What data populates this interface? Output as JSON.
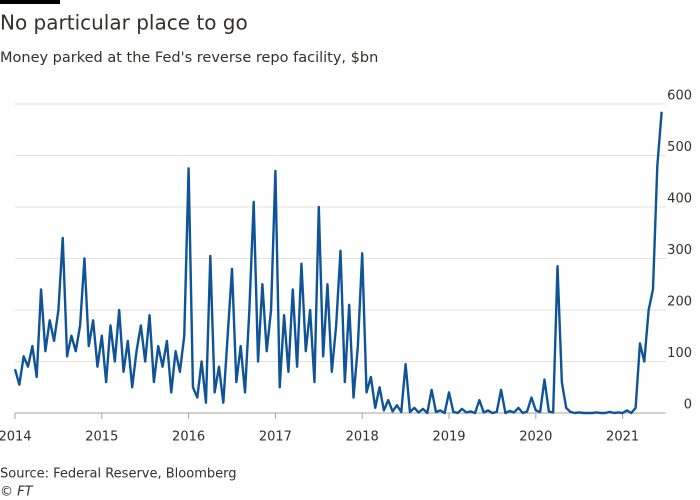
{
  "chart_data": {
    "type": "line",
    "title": "No particular place to go",
    "subtitle": "Money parked at the Fed's reverse repo facility, $bn",
    "source": "Source: Federal Reserve, Bloomberg",
    "credit": "© FT",
    "color": "#0f5499",
    "grid": true,
    "y_axis_side": "right",
    "xlim": [
      2014,
      2021.5
    ],
    "xticks": [
      2014,
      2015,
      2016,
      2017,
      2018,
      2019,
      2020,
      2021
    ],
    "ylim": [
      0,
      600
    ],
    "yticks": [
      0,
      100,
      200,
      300,
      400,
      500,
      600
    ],
    "x": [
      2014,
      2014.05,
      2014.1,
      2014.15,
      2014.2,
      2014.25,
      2014.3,
      2014.35,
      2014.4,
      2014.45,
      2014.5,
      2014.55,
      2014.6,
      2014.65,
      2014.7,
      2014.75,
      2014.8,
      2014.85,
      2014.9,
      2014.95,
      2015,
      2015.05,
      2015.1,
      2015.15,
      2015.2,
      2015.25,
      2015.3,
      2015.35,
      2015.4,
      2015.45,
      2015.5,
      2015.55,
      2015.6,
      2015.65,
      2015.7,
      2015.75,
      2015.8,
      2015.85,
      2015.9,
      2015.95,
      2016,
      2016.05,
      2016.1,
      2016.15,
      2016.2,
      2016.25,
      2016.3,
      2016.35,
      2016.4,
      2016.45,
      2016.5,
      2016.55,
      2016.6,
      2016.65,
      2016.7,
      2016.75,
      2016.8,
      2016.85,
      2016.9,
      2016.95,
      2017,
      2017.05,
      2017.1,
      2017.15,
      2017.2,
      2017.25,
      2017.3,
      2017.35,
      2017.4,
      2017.45,
      2017.5,
      2017.55,
      2017.6,
      2017.65,
      2017.7,
      2017.75,
      2017.8,
      2017.85,
      2017.9,
      2017.95,
      2018,
      2018.05,
      2018.1,
      2018.15,
      2018.2,
      2018.25,
      2018.3,
      2018.35,
      2018.4,
      2018.45,
      2018.5,
      2018.55,
      2018.6,
      2018.65,
      2018.7,
      2018.75,
      2018.8,
      2018.85,
      2018.9,
      2018.95,
      2019,
      2019.05,
      2019.1,
      2019.15,
      2019.2,
      2019.25,
      2019.3,
      2019.35,
      2019.4,
      2019.45,
      2019.5,
      2019.55,
      2019.6,
      2019.65,
      2019.7,
      2019.75,
      2019.8,
      2019.85,
      2019.9,
      2019.95,
      2020,
      2020.05,
      2020.1,
      2020.15,
      2020.2,
      2020.25,
      2020.3,
      2020.35,
      2020.4,
      2020.45,
      2020.5,
      2020.55,
      2020.6,
      2020.65,
      2020.7,
      2020.75,
      2020.8,
      2020.85,
      2020.9,
      2020.95,
      2021,
      2021.05,
      2021.1,
      2021.15,
      2021.2,
      2021.25,
      2021.3,
      2021.35,
      2021.4,
      2021.45
    ],
    "values": [
      85,
      55,
      110,
      90,
      130,
      70,
      240,
      120,
      180,
      140,
      200,
      340,
      110,
      150,
      120,
      170,
      300,
      130,
      180,
      90,
      150,
      60,
      170,
      100,
      200,
      80,
      140,
      50,
      120,
      170,
      100,
      190,
      60,
      130,
      90,
      140,
      40,
      120,
      80,
      150,
      475,
      50,
      30,
      100,
      20,
      305,
      40,
      90,
      20,
      150,
      280,
      60,
      130,
      40,
      200,
      410,
      100,
      250,
      120,
      200,
      470,
      50,
      190,
      80,
      240,
      90,
      290,
      120,
      200,
      60,
      400,
      110,
      250,
      80,
      170,
      315,
      60,
      210,
      30,
      130,
      310,
      40,
      70,
      10,
      50,
      5,
      25,
      3,
      15,
      2,
      95,
      2,
      10,
      1,
      8,
      0,
      45,
      2,
      5,
      0,
      40,
      2,
      0,
      8,
      1,
      3,
      0,
      25,
      1,
      5,
      0,
      2,
      45,
      0,
      4,
      1,
      10,
      0,
      3,
      30,
      5,
      2,
      65,
      3,
      1,
      285,
      60,
      10,
      2,
      0,
      1,
      0,
      0,
      0,
      1,
      0,
      0,
      2,
      0,
      1,
      0,
      5,
      0,
      10,
      135,
      100,
      200,
      240,
      480,
      585
    ]
  }
}
